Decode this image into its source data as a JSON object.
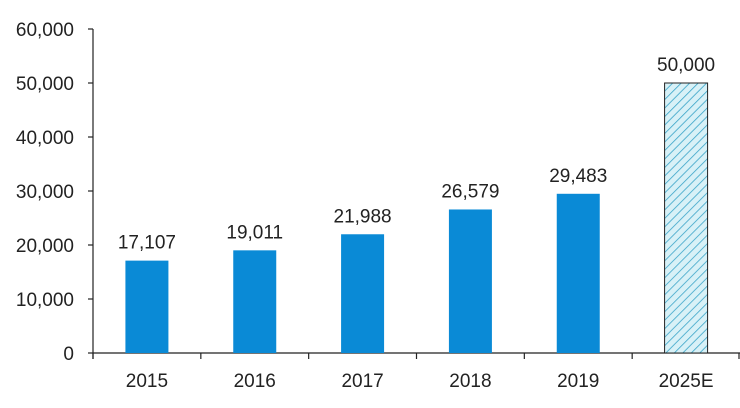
{
  "chart_data": {
    "type": "bar",
    "title": "",
    "xlabel": "",
    "ylabel": "",
    "categories": [
      "2015",
      "2016",
      "2017",
      "2018",
      "2019",
      "2025E"
    ],
    "values": [
      17107,
      19011,
      21988,
      26579,
      29483,
      50000
    ],
    "data_labels": [
      "17,107",
      "19,011",
      "21,988",
      "26,579",
      "29,483",
      "50,000"
    ],
    "estimated": [
      false,
      false,
      false,
      false,
      false,
      true
    ],
    "ylim": [
      0,
      60000
    ],
    "yticks": [
      0,
      10000,
      20000,
      30000,
      40000,
      50000,
      60000
    ],
    "ytick_labels": [
      "0",
      "10,000",
      "20,000",
      "30,000",
      "40,000",
      "50,000",
      "60,000"
    ],
    "grid": false,
    "legend": null,
    "colors": {
      "bar": "#0a8ad6",
      "estimate_fill": "#d8f1f7",
      "estimate_hatch": "#3aa5c8",
      "estimate_border": "#222222",
      "axis": "#222222"
    }
  }
}
